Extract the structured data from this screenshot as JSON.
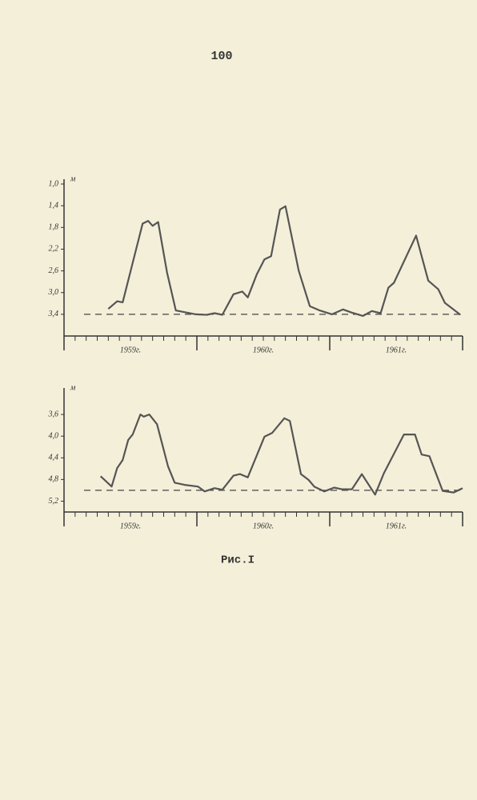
{
  "page_number": "100",
  "caption": "Рис.I",
  "chart_data": [
    {
      "type": "line",
      "y_label": "м",
      "ylim": [
        3.8,
        1.0
      ],
      "xlim": [
        0,
        36
      ],
      "yticks": [
        {
          "value": 1.0,
          "label": "1,0"
        },
        {
          "value": 1.4,
          "label": "1,4"
        },
        {
          "value": 1.8,
          "label": "1,8"
        },
        {
          "value": 2.2,
          "label": "2,2"
        },
        {
          "value": 2.6,
          "label": "2,6"
        },
        {
          "value": 3.0,
          "label": "3,0"
        },
        {
          "value": 3.4,
          "label": "3,4"
        }
      ],
      "xticks": [
        0,
        1,
        2,
        3,
        4,
        5,
        6,
        7,
        8,
        9,
        10,
        11,
        12,
        13,
        14,
        15,
        16,
        17,
        18,
        19,
        20,
        21,
        22,
        23,
        24,
        25,
        26,
        27,
        28,
        29,
        30,
        31,
        32,
        33,
        34,
        35,
        36
      ],
      "x_labels": [
        {
          "value": 6,
          "label": "1959г."
        },
        {
          "value": 18,
          "label": "1960г."
        },
        {
          "value": 30,
          "label": "1961г."
        }
      ],
      "reference": 3.4,
      "color": "#555555",
      "x": [
        4.0,
        4.8,
        5.3,
        7.1,
        7.6,
        8.0,
        8.5,
        9.3,
        10.1,
        11.9,
        12.9,
        13.6,
        14.3,
        15.3,
        16.1,
        16.6,
        17.4,
        18.1,
        18.7,
        19.5,
        20.0,
        21.2,
        22.2,
        23.1,
        24.2,
        25.2,
        26.0,
        27.0,
        27.8,
        28.6,
        29.3,
        29.8,
        31.8,
        32.9,
        33.8,
        34.4,
        35.3,
        35.8
      ],
      "values": [
        3.3,
        3.16,
        3.18,
        1.73,
        1.68,
        1.77,
        1.7,
        2.63,
        3.33,
        3.4,
        3.41,
        3.38,
        3.41,
        3.03,
        2.98,
        3.09,
        2.67,
        2.39,
        2.33,
        1.47,
        1.41,
        2.6,
        3.25,
        3.33,
        3.4,
        3.31,
        3.37,
        3.43,
        3.34,
        3.38,
        2.91,
        2.82,
        1.95,
        2.78,
        2.94,
        3.19,
        3.33,
        3.41
      ]
    },
    {
      "type": "line",
      "y_label": "м",
      "ylim": [
        5.4,
        3.2
      ],
      "xlim": [
        0,
        36
      ],
      "yticks": [
        {
          "value": 3.6,
          "label": "3,6"
        },
        {
          "value": 4.0,
          "label": "4,0"
        },
        {
          "value": 4.4,
          "label": "4,4"
        },
        {
          "value": 4.8,
          "label": "4,8"
        },
        {
          "value": 5.2,
          "label": "5,2"
        }
      ],
      "xticks": [
        0,
        1,
        2,
        3,
        4,
        5,
        6,
        7,
        8,
        9,
        10,
        11,
        12,
        13,
        14,
        15,
        16,
        17,
        18,
        19,
        20,
        21,
        22,
        23,
        24,
        25,
        26,
        27,
        28,
        29,
        30,
        31,
        32,
        33,
        34,
        35,
        36
      ],
      "x_labels": [
        {
          "value": 6,
          "label": "1959г."
        },
        {
          "value": 18,
          "label": "1960г."
        },
        {
          "value": 30,
          "label": "1961г."
        }
      ],
      "reference": 5.0,
      "color": "#555555",
      "x": [
        3.3,
        4.3,
        4.8,
        5.3,
        5.8,
        6.2,
        6.9,
        7.2,
        7.7,
        8.4,
        9.4,
        10.0,
        10.9,
        12.1,
        12.7,
        13.6,
        14.3,
        15.3,
        15.9,
        16.6,
        18.1,
        18.8,
        19.9,
        20.4,
        21.4,
        22.1,
        22.6,
        23.5,
        24.4,
        25.1,
        26.0,
        26.9,
        28.1,
        28.9,
        30.7,
        31.7,
        32.3,
        33.0,
        34.2,
        35.2,
        36.0
      ],
      "values": [
        4.74,
        4.93,
        4.59,
        4.44,
        4.07,
        3.97,
        3.6,
        3.64,
        3.6,
        3.78,
        4.56,
        4.86,
        4.9,
        4.93,
        5.02,
        4.96,
        4.99,
        4.73,
        4.7,
        4.76,
        4.01,
        3.94,
        3.67,
        3.72,
        4.7,
        4.81,
        4.93,
        5.02,
        4.95,
        4.98,
        4.98,
        4.7,
        5.08,
        4.68,
        3.97,
        3.97,
        4.34,
        4.37,
        5.01,
        5.04,
        4.96
      ]
    }
  ]
}
